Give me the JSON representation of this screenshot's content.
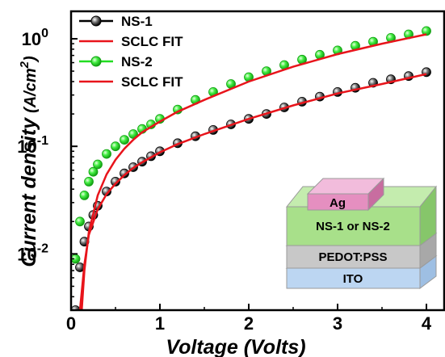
{
  "chart_data": {
    "type": "line",
    "xlabel": "Voltage (Volts)",
    "ylabel": "Current density",
    "ylabel_unit_base": "(A/cm",
    "ylabel_unit_exp": "2",
    "ylabel_unit_close": ")",
    "xlim": [
      0,
      4.2
    ],
    "ylim": [
      0.003,
      1.8
    ],
    "y_scale": "log",
    "x_ticks": [
      0,
      1,
      2,
      3,
      4
    ],
    "y_ticks": [
      {
        "value": 1,
        "base": "10",
        "exp": "0"
      },
      {
        "value": 0.1,
        "base": "10",
        "exp": "-1"
      },
      {
        "value": 0.01,
        "base": "10",
        "exp": "-2"
      }
    ],
    "legend_position": "top-left",
    "series": [
      {
        "name": "NS-1",
        "style": "markers",
        "color": "#000000",
        "x": [
          0.05,
          0.1,
          0.15,
          0.2,
          0.25,
          0.3,
          0.4,
          0.5,
          0.6,
          0.7,
          0.8,
          0.9,
          1.0,
          1.2,
          1.4,
          1.6,
          1.8,
          2.0,
          2.2,
          2.4,
          2.6,
          2.8,
          3.0,
          3.2,
          3.4,
          3.6,
          3.8,
          4.0
        ],
        "y": [
          0.003,
          0.0075,
          0.013,
          0.018,
          0.023,
          0.028,
          0.038,
          0.047,
          0.056,
          0.064,
          0.072,
          0.081,
          0.09,
          0.107,
          0.124,
          0.142,
          0.16,
          0.18,
          0.2,
          0.23,
          0.26,
          0.29,
          0.32,
          0.35,
          0.39,
          0.42,
          0.45,
          0.49
        ]
      },
      {
        "name": "SCLC FIT",
        "style": "line",
        "color": "#e8141b",
        "x": [
          0.1,
          0.15,
          0.2,
          0.3,
          0.4,
          0.5,
          0.6,
          0.7,
          0.8,
          1.0,
          1.2,
          1.5,
          2.0,
          2.5,
          3.0,
          3.5,
          4.0
        ],
        "y": [
          0.003,
          0.008,
          0.015,
          0.026,
          0.036,
          0.045,
          0.054,
          0.063,
          0.071,
          0.088,
          0.105,
          0.13,
          0.18,
          0.24,
          0.31,
          0.38,
          0.47
        ]
      },
      {
        "name": "NS-2",
        "style": "markers",
        "color": "#22dd22",
        "x": [
          0.05,
          0.1,
          0.15,
          0.2,
          0.25,
          0.3,
          0.4,
          0.5,
          0.6,
          0.7,
          0.8,
          0.9,
          1.0,
          1.2,
          1.4,
          1.6,
          1.8,
          2.0,
          2.2,
          2.4,
          2.6,
          2.8,
          3.0,
          3.2,
          3.4,
          3.6,
          3.8,
          4.0
        ],
        "y": [
          0.009,
          0.02,
          0.035,
          0.047,
          0.058,
          0.068,
          0.085,
          0.1,
          0.115,
          0.13,
          0.145,
          0.16,
          0.18,
          0.22,
          0.27,
          0.32,
          0.38,
          0.44,
          0.5,
          0.57,
          0.64,
          0.71,
          0.78,
          0.86,
          0.94,
          1.02,
          1.1,
          1.18
        ]
      },
      {
        "name": "SCLC FIT",
        "style": "line",
        "color": "#e8141b",
        "x": [
          0.12,
          0.15,
          0.2,
          0.3,
          0.4,
          0.5,
          0.6,
          0.7,
          0.8,
          1.0,
          1.2,
          1.5,
          2.0,
          2.5,
          3.0,
          3.5,
          4.0
        ],
        "y": [
          0.003,
          0.007,
          0.016,
          0.035,
          0.055,
          0.075,
          0.095,
          0.115,
          0.135,
          0.17,
          0.21,
          0.27,
          0.4,
          0.55,
          0.72,
          0.9,
          1.1
        ]
      }
    ]
  },
  "inset": {
    "layers": [
      {
        "label": "Ag",
        "color": "#e58fc0"
      },
      {
        "label": "NS-1 or NS-2",
        "color": "#a8e08a"
      },
      {
        "label": "PEDOT:PSS",
        "color": "#c8c8c8"
      },
      {
        "label": "ITO",
        "color": "#bcd6f2"
      }
    ]
  }
}
